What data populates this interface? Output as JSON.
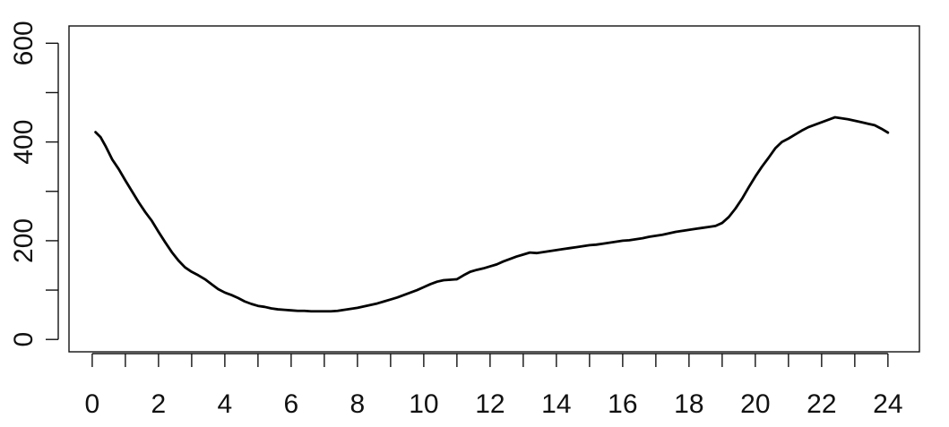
{
  "chart_data": {
    "type": "line",
    "title": "",
    "xlabel": "",
    "ylabel": "",
    "xlim": [
      -0.7,
      24.95
    ],
    "ylim": [
      -25,
      635
    ],
    "x_ticks_labeled": [
      0,
      2,
      4,
      6,
      8,
      10,
      12,
      14,
      16,
      18,
      20,
      22,
      24
    ],
    "x_tick_labels": [
      "0",
      "2",
      "4",
      "6",
      "8",
      "10",
      "12",
      "14",
      "16",
      "18",
      "20",
      "22",
      "24"
    ],
    "x_ticks_minor": [
      1,
      3,
      5,
      7,
      9,
      11,
      13,
      15,
      17,
      19,
      21,
      23
    ],
    "y_ticks": [
      0,
      100,
      200,
      300,
      400,
      500,
      600
    ],
    "y_tick_labels": [
      "0",
      "",
      "200",
      "",
      "400",
      "",
      "600"
    ],
    "grid": false,
    "line_color": "#000000",
    "series": [
      {
        "x": [
          0.1,
          0.25,
          0.4,
          0.6,
          0.8,
          1.0,
          1.2,
          1.4,
          1.6,
          1.8,
          2.0,
          2.2,
          2.4,
          2.6,
          2.8,
          3.0,
          3.2,
          3.4,
          3.6,
          3.8,
          4.0,
          4.2,
          4.4,
          4.6,
          4.8,
          5.0,
          5.2,
          5.4,
          5.6,
          5.8,
          6.0,
          6.2,
          6.4,
          6.6,
          6.8,
          7.0,
          7.2,
          7.4,
          7.6,
          7.8,
          8.0,
          8.2,
          8.4,
          8.6,
          8.8,
          9.0,
          9.2,
          9.4,
          9.6,
          9.8,
          10.0,
          10.2,
          10.4,
          10.6,
          10.8,
          11.0,
          11.2,
          11.4,
          11.6,
          11.8,
          12.0,
          12.2,
          12.4,
          12.6,
          12.8,
          13.0,
          13.2,
          13.4,
          13.6,
          13.8,
          14.0,
          14.2,
          14.4,
          14.6,
          14.8,
          15.0,
          15.2,
          15.4,
          15.6,
          15.8,
          16.0,
          16.2,
          16.4,
          16.6,
          16.8,
          17.0,
          17.2,
          17.4,
          17.6,
          17.8,
          18.0,
          18.2,
          18.4,
          18.6,
          18.8,
          19.0,
          19.2,
          19.4,
          19.6,
          19.8,
          20.0,
          20.2,
          20.4,
          20.6,
          20.8,
          21.0,
          21.2,
          21.4,
          21.6,
          21.8,
          22.0,
          22.2,
          22.4,
          22.6,
          22.8,
          23.0,
          23.2,
          23.4,
          23.6,
          23.8,
          24.0
        ],
        "y": [
          420,
          410,
          392,
          365,
          345,
          322,
          300,
          278,
          258,
          240,
          218,
          197,
          177,
          160,
          146,
          137,
          130,
          122,
          112,
          102,
          95,
          90,
          84,
          77,
          72,
          68,
          66,
          63,
          61,
          60,
          59,
          58,
          58,
          57,
          57,
          57,
          57,
          58,
          60,
          62,
          64,
          67,
          70,
          73,
          77,
          81,
          85,
          90,
          95,
          100,
          106,
          112,
          117,
          120,
          121,
          122,
          130,
          137,
          141,
          144,
          148,
          152,
          158,
          163,
          168,
          172,
          176,
          175,
          177,
          179,
          181,
          183,
          185,
          187,
          189,
          191,
          192,
          194,
          196,
          198,
          200,
          201,
          203,
          205,
          208,
          210,
          212,
          215,
          218,
          220,
          222,
          224,
          226,
          228,
          230,
          236,
          248,
          265,
          285,
          308,
          330,
          350,
          368,
          387,
          400,
          407,
          415,
          423,
          430,
          435,
          440,
          445,
          450,
          448,
          446,
          443,
          440,
          437,
          434,
          427,
          419
        ]
      }
    ]
  }
}
